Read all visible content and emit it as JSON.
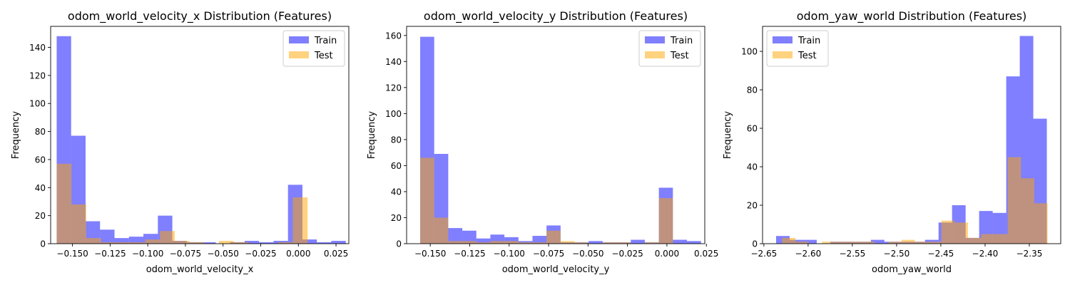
{
  "colors": {
    "train": "#0000ff",
    "test": "#ffa500",
    "bar_alpha": 0.5
  },
  "chart_data": [
    {
      "type": "histogram",
      "title": "odom_world_velocity_x Distribution (Features)",
      "xlabel": "odom_world_velocity_x",
      "ylabel": "Frequency",
      "xlim": [
        -0.1645,
        0.0335
      ],
      "ylim": [
        0,
        155
      ],
      "xticks": [
        -0.15,
        -0.125,
        -0.1,
        -0.075,
        -0.05,
        -0.025,
        0.0,
        0.025
      ],
      "xtick_labels": [
        "−0.150",
        "−0.125",
        "−0.100",
        "−0.075",
        "−0.050",
        "−0.025",
        "0.000",
        "0.025"
      ],
      "yticks": [
        0,
        20,
        40,
        60,
        80,
        100,
        120,
        140
      ],
      "legend": {
        "placement": "top-right",
        "entries": [
          "Train",
          "Test"
        ]
      },
      "series": [
        {
          "name": "Train",
          "color": "#0000ff",
          "bins": [
            [
              -0.1605,
              -0.1509,
              148
            ],
            [
              -0.1509,
              -0.1413,
              77
            ],
            [
              -0.1413,
              -0.1317,
              16
            ],
            [
              -0.1317,
              -0.1221,
              10
            ],
            [
              -0.1221,
              -0.1125,
              4
            ],
            [
              -0.1125,
              -0.1029,
              5
            ],
            [
              -0.1029,
              -0.0933,
              7
            ],
            [
              -0.0933,
              -0.0837,
              20
            ],
            [
              -0.0837,
              -0.0741,
              2
            ],
            [
              -0.0741,
              -0.0645,
              1
            ],
            [
              -0.0645,
              -0.0549,
              1
            ],
            [
              -0.0549,
              -0.0453,
              0
            ],
            [
              -0.0453,
              -0.0357,
              1
            ],
            [
              -0.0357,
              -0.0261,
              2
            ],
            [
              -0.0261,
              -0.0165,
              1
            ],
            [
              -0.0165,
              -0.0069,
              2
            ],
            [
              -0.0069,
              0.0027,
              42
            ],
            [
              0.0027,
              0.0123,
              3
            ],
            [
              0.0123,
              0.0219,
              1
            ],
            [
              0.0219,
              0.0315,
              2
            ]
          ]
        },
        {
          "name": "Test",
          "color": "#ffa500",
          "bins": [
            [
              -0.1605,
              -0.1507,
              57
            ],
            [
              -0.1507,
              -0.1409,
              28
            ],
            [
              -0.1409,
              -0.1311,
              4
            ],
            [
              -0.1311,
              -0.1213,
              1
            ],
            [
              -0.1213,
              -0.1115,
              1
            ],
            [
              -0.1115,
              -0.1017,
              1
            ],
            [
              -0.1017,
              -0.0919,
              3
            ],
            [
              -0.0919,
              -0.0821,
              9
            ],
            [
              -0.0821,
              -0.0723,
              2
            ],
            [
              -0.0723,
              -0.0625,
              1
            ],
            [
              -0.0625,
              -0.0527,
              0
            ],
            [
              -0.0527,
              -0.0429,
              2
            ],
            [
              -0.0429,
              -0.0331,
              1
            ],
            [
              -0.0331,
              -0.0233,
              0
            ],
            [
              -0.0233,
              -0.0135,
              0
            ],
            [
              -0.0135,
              -0.0037,
              1
            ],
            [
              -0.0037,
              0.0061,
              33
            ]
          ]
        }
      ]
    },
    {
      "type": "histogram",
      "title": "odom_world_velocity_y Distribution (Features)",
      "xlabel": "odom_world_velocity_y",
      "ylabel": "Frequency",
      "xlim": [
        -0.165,
        0.024
      ],
      "ylim": [
        0,
        167
      ],
      "xticks": [
        -0.15,
        -0.125,
        -0.1,
        -0.075,
        -0.05,
        -0.025,
        0.0,
        0.025
      ],
      "xtick_labels": [
        "−0.150",
        "−0.125",
        "−0.100",
        "−0.075",
        "−0.050",
        "−0.025",
        "0.000",
        "0.025"
      ],
      "yticks": [
        0,
        20,
        40,
        60,
        80,
        100,
        120,
        140,
        160
      ],
      "legend": {
        "placement": "top-right",
        "entries": [
          "Train",
          "Test"
        ]
      },
      "series": [
        {
          "name": "Train",
          "color": "#0000ff",
          "bins": [
            [
              -0.1564,
              -0.1475,
              159
            ],
            [
              -0.1475,
              -0.1386,
              69
            ],
            [
              -0.1386,
              -0.1297,
              12
            ],
            [
              -0.1297,
              -0.1208,
              10
            ],
            [
              -0.1208,
              -0.1119,
              4
            ],
            [
              -0.1119,
              -0.103,
              7
            ],
            [
              -0.103,
              -0.0941,
              5
            ],
            [
              -0.0941,
              -0.0852,
              2
            ],
            [
              -0.0852,
              -0.0763,
              6
            ],
            [
              -0.0763,
              -0.0674,
              14
            ],
            [
              -0.0674,
              -0.0585,
              1
            ],
            [
              -0.0585,
              -0.0496,
              1
            ],
            [
              -0.0496,
              -0.0407,
              2
            ],
            [
              -0.0407,
              -0.0318,
              1
            ],
            [
              -0.0318,
              -0.0229,
              1
            ],
            [
              -0.0229,
              -0.014,
              3
            ],
            [
              -0.014,
              -0.0051,
              1
            ],
            [
              -0.0051,
              0.0038,
              43
            ],
            [
              0.0038,
              0.0127,
              3
            ],
            [
              0.0127,
              0.0216,
              2
            ]
          ]
        },
        {
          "name": "Test",
          "color": "#ffa500",
          "bins": [
            [
              -0.1564,
              -0.1475,
              66
            ],
            [
              -0.1475,
              -0.1386,
              20
            ],
            [
              -0.1386,
              -0.1297,
              2
            ],
            [
              -0.1297,
              -0.1208,
              2
            ],
            [
              -0.1208,
              -0.1119,
              1
            ],
            [
              -0.1119,
              -0.103,
              2
            ],
            [
              -0.103,
              -0.0941,
              2
            ],
            [
              -0.0941,
              -0.0852,
              1
            ],
            [
              -0.0852,
              -0.0763,
              1
            ],
            [
              -0.0763,
              -0.0674,
              10
            ],
            [
              -0.0674,
              -0.0585,
              2
            ],
            [
              -0.0585,
              -0.0496,
              1
            ],
            [
              -0.0496,
              -0.0407,
              0
            ],
            [
              -0.0407,
              -0.0318,
              1
            ],
            [
              -0.0318,
              -0.0229,
              1
            ],
            [
              -0.0229,
              -0.014,
              0
            ],
            [
              -0.014,
              -0.0051,
              1
            ],
            [
              -0.0051,
              0.0038,
              35
            ]
          ]
        }
      ]
    },
    {
      "type": "histogram",
      "title": "odom_yaw_world Distribution (Features)",
      "xlabel": "odom_yaw_world",
      "ylabel": "Frequency",
      "xlim": [
        -2.6515,
        -2.3145
      ],
      "ylim": [
        0,
        113
      ],
      "xticks": [
        -2.65,
        -2.6,
        -2.55,
        -2.5,
        -2.45,
        -2.4,
        -2.35
      ],
      "xtick_labels": [
        "−2.65",
        "−2.60",
        "−2.55",
        "−2.50",
        "−2.45",
        "−2.40",
        "−2.35"
      ],
      "yticks": [
        0,
        20,
        40,
        60,
        80,
        100
      ],
      "legend": {
        "placement": "top-left",
        "entries": [
          "Train",
          "Test"
        ]
      },
      "series": [
        {
          "name": "Train",
          "color": "#0000ff",
          "bins": [
            [
              -2.6362,
              -2.6209,
              4
            ],
            [
              -2.6209,
              -2.6056,
              2
            ],
            [
              -2.6056,
              -2.5903,
              2
            ],
            [
              -2.5903,
              -2.575,
              0
            ],
            [
              -2.575,
              -2.5597,
              1
            ],
            [
              -2.5597,
              -2.5444,
              1
            ],
            [
              -2.5444,
              -2.5291,
              1
            ],
            [
              -2.5291,
              -2.5138,
              2
            ],
            [
              -2.5138,
              -2.4985,
              1
            ],
            [
              -2.4985,
              -2.4832,
              1
            ],
            [
              -2.4832,
              -2.4679,
              1
            ],
            [
              -2.4679,
              -2.4526,
              2
            ],
            [
              -2.4526,
              -2.4373,
              11
            ],
            [
              -2.4373,
              -2.422,
              20
            ],
            [
              -2.422,
              -2.4067,
              3
            ],
            [
              -2.4067,
              -2.3914,
              17
            ],
            [
              -2.3914,
              -2.3761,
              16
            ],
            [
              -2.3761,
              -2.3608,
              87
            ],
            [
              -2.3608,
              -2.3455,
              108
            ],
            [
              -2.3455,
              -2.3302,
              65
            ]
          ]
        },
        {
          "name": "Test",
          "color": "#ffa500",
          "bins": [
            [
              -2.6294,
              -2.6144,
              3
            ],
            [
              -2.6144,
              -2.5994,
              1
            ],
            [
              -2.5994,
              -2.5844,
              0
            ],
            [
              -2.5844,
              -2.5694,
              1
            ],
            [
              -2.5694,
              -2.5544,
              1
            ],
            [
              -2.5544,
              -2.5394,
              1
            ],
            [
              -2.5394,
              -2.5244,
              1
            ],
            [
              -2.5244,
              -2.5094,
              0
            ],
            [
              -2.5094,
              -2.4944,
              1
            ],
            [
              -2.4944,
              -2.4794,
              2
            ],
            [
              -2.4794,
              -2.4644,
              1
            ],
            [
              -2.4644,
              -2.4494,
              1
            ],
            [
              -2.4494,
              -2.4344,
              12
            ],
            [
              -2.4344,
              -2.4194,
              11
            ],
            [
              -2.4194,
              -2.4044,
              3
            ],
            [
              -2.4044,
              -2.3894,
              5
            ],
            [
              -2.3894,
              -2.3744,
              5
            ],
            [
              -2.3744,
              -2.3594,
              45
            ],
            [
              -2.3594,
              -2.3444,
              34
            ],
            [
              -2.3444,
              -2.3294,
              21
            ]
          ]
        }
      ]
    }
  ]
}
